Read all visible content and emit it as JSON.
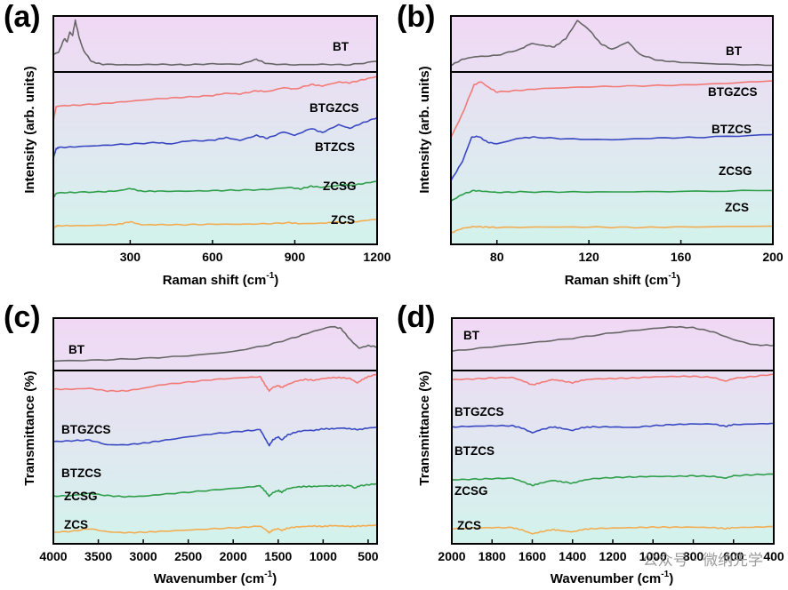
{
  "figure": {
    "watermark": "公众号 · 微纳先学",
    "colors": {
      "BT": "#666666",
      "BTGZCS": "#f27a76",
      "BTZCS": "#3a48c2",
      "ZCSG": "#2e9e4a",
      "ZCS": "#f2ad52"
    },
    "background_gradient": [
      "#f1d8f5",
      "#d3f3ec"
    ]
  },
  "chart_data": [
    {
      "panel": "(a)",
      "type": "line",
      "xlabel": "Raman shift (cm",
      "xlabel_sup": "-1",
      "xlabel_end": ")",
      "ylabel": "Intensity (arb. units)",
      "xlim": [
        20,
        1200
      ],
      "xticks": [
        300,
        600,
        900,
        1200
      ],
      "xticklabels": [
        "300",
        "600",
        "900",
        "1200"
      ],
      "series": [
        {
          "name": "BT",
          "x": [
            20,
            40,
            60,
            70,
            80,
            90,
            100,
            115,
            130,
            160,
            200,
            300,
            400,
            500,
            600,
            700,
            760,
            800,
            900,
            1000,
            1100,
            1200
          ],
          "values": [
            0.3,
            0.35,
            0.62,
            0.55,
            0.75,
            0.68,
            0.98,
            0.62,
            0.38,
            0.15,
            0.1,
            0.09,
            0.1,
            0.09,
            0.11,
            0.1,
            0.2,
            0.11,
            0.09,
            0.1,
            0.09,
            0.16
          ]
        },
        {
          "name": "BTGZCS",
          "x": [
            20,
            30,
            40,
            100,
            200,
            300,
            400,
            500,
            600,
            650,
            700,
            760,
            800,
            860,
            900,
            960,
            1000,
            1060,
            1100,
            1150,
            1200
          ],
          "values": [
            0.45,
            0.62,
            0.63,
            0.64,
            0.66,
            0.69,
            0.72,
            0.74,
            0.76,
            0.79,
            0.78,
            0.82,
            0.81,
            0.86,
            0.84,
            0.9,
            0.88,
            0.93,
            0.92,
            0.96,
            1.0
          ]
        },
        {
          "name": "BTZCS",
          "x": [
            20,
            30,
            40,
            100,
            200,
            300,
            400,
            450,
            500,
            600,
            650,
            700,
            760,
            800,
            860,
            900,
            960,
            1000,
            1060,
            1100,
            1150,
            1200
          ],
          "values": [
            0.35,
            0.48,
            0.5,
            0.51,
            0.53,
            0.55,
            0.57,
            0.55,
            0.59,
            0.6,
            0.64,
            0.6,
            0.67,
            0.63,
            0.72,
            0.67,
            0.77,
            0.71,
            0.82,
            0.77,
            0.85,
            0.92
          ]
        },
        {
          "name": "ZCSG",
          "x": [
            20,
            30,
            40,
            100,
            200,
            260,
            300,
            340,
            400,
            500,
            600,
            700,
            800,
            880,
            920,
            960,
            1000,
            1080,
            1100,
            1150,
            1200
          ],
          "values": [
            0.28,
            0.36,
            0.37,
            0.38,
            0.39,
            0.41,
            0.45,
            0.4,
            0.4,
            0.4,
            0.41,
            0.42,
            0.43,
            0.47,
            0.44,
            0.49,
            0.47,
            0.52,
            0.5,
            0.54,
            0.58
          ]
        },
        {
          "name": "ZCS",
          "x": [
            20,
            30,
            40,
            100,
            200,
            260,
            300,
            340,
            400,
            500,
            600,
            700,
            800,
            880,
            920,
            1000,
            1050,
            1100,
            1150,
            1200
          ],
          "values": [
            0.2,
            0.24,
            0.25,
            0.25,
            0.26,
            0.28,
            0.33,
            0.27,
            0.27,
            0.27,
            0.28,
            0.28,
            0.29,
            0.31,
            0.29,
            0.3,
            0.32,
            0.31,
            0.35,
            0.38
          ]
        }
      ]
    },
    {
      "panel": "(b)",
      "type": "line",
      "xlabel": "Raman shift (cm",
      "xlabel_sup": "-1",
      "xlabel_end": ")",
      "ylabel": "Intensity (arb. units)",
      "xlim": [
        60,
        200
      ],
      "xticks": [
        80,
        120,
        160,
        200
      ],
      "xticklabels": [
        "80",
        "120",
        "160",
        "200"
      ],
      "series": [
        {
          "name": "BT",
          "x": [
            60,
            65,
            70,
            80,
            90,
            95,
            100,
            105,
            110,
            115,
            120,
            125,
            130,
            137,
            142,
            150,
            160,
            180,
            200
          ],
          "values": [
            0.08,
            0.2,
            0.25,
            0.28,
            0.4,
            0.52,
            0.48,
            0.45,
            0.62,
            0.98,
            0.8,
            0.52,
            0.4,
            0.55,
            0.3,
            0.18,
            0.14,
            0.1,
            0.08
          ]
        },
        {
          "name": "BTGZCS",
          "x": [
            60,
            65,
            70,
            73,
            76,
            80,
            90,
            100,
            120,
            140,
            160,
            180,
            200
          ],
          "values": [
            0.28,
            0.55,
            0.88,
            0.92,
            0.86,
            0.8,
            0.82,
            0.84,
            0.86,
            0.87,
            0.88,
            0.9,
            0.93
          ]
        },
        {
          "name": "BTZCS",
          "x": [
            60,
            65,
            69,
            72,
            76,
            80,
            90,
            96,
            110,
            130,
            150,
            170,
            200
          ],
          "values": [
            0.22,
            0.45,
            0.74,
            0.75,
            0.68,
            0.66,
            0.73,
            0.74,
            0.72,
            0.71,
            0.73,
            0.74,
            0.77
          ]
        },
        {
          "name": "ZCSG",
          "x": [
            60,
            65,
            70,
            75,
            80,
            90,
            110,
            130,
            160,
            200
          ],
          "values": [
            0.18,
            0.32,
            0.4,
            0.38,
            0.36,
            0.37,
            0.37,
            0.37,
            0.38,
            0.4
          ]
        },
        {
          "name": "ZCS",
          "x": [
            60,
            65,
            70,
            75,
            80,
            100,
            120,
            140,
            160,
            200
          ],
          "values": [
            0.12,
            0.22,
            0.26,
            0.25,
            0.24,
            0.25,
            0.25,
            0.24,
            0.25,
            0.27
          ]
        }
      ]
    },
    {
      "panel": "(c)",
      "type": "line",
      "xlabel": "Wavenumber (cm",
      "xlabel_sup": "-1",
      "xlabel_end": ")",
      "ylabel": "Transmittance (%)",
      "xlim": [
        4000,
        400
      ],
      "xticks": [
        4000,
        3500,
        3000,
        2500,
        2000,
        1500,
        1000,
        500
      ],
      "xticklabels": [
        "4000",
        "3500",
        "3000",
        "2500",
        "2000",
        "1500",
        "1000",
        "500"
      ],
      "series": [
        {
          "name": "BT",
          "x": [
            4000,
            3500,
            3000,
            2500,
            2000,
            1600,
            1300,
            1100,
            900,
            800,
            700,
            600,
            500,
            400
          ],
          "values": [
            0.12,
            0.14,
            0.18,
            0.24,
            0.34,
            0.5,
            0.68,
            0.82,
            0.93,
            0.88,
            0.62,
            0.42,
            0.48,
            0.45
          ]
        },
        {
          "name": "BTGZCS",
          "x": [
            4000,
            3800,
            3600,
            3400,
            3200,
            3000,
            2800,
            2500,
            2200,
            1900,
            1700,
            1640,
            1600,
            1560,
            1500,
            1460,
            1400,
            1300,
            1200,
            1100,
            1000,
            900,
            800,
            700,
            620,
            560,
            500,
            400
          ],
          "values": [
            0.82,
            0.82,
            0.83,
            0.8,
            0.8,
            0.83,
            0.87,
            0.9,
            0.93,
            0.95,
            0.96,
            0.86,
            0.8,
            0.84,
            0.86,
            0.84,
            0.87,
            0.91,
            0.93,
            0.92,
            0.94,
            0.95,
            0.95,
            0.94,
            0.89,
            0.93,
            0.96,
            0.99
          ]
        },
        {
          "name": "BTZCS",
          "x": [
            4000,
            3800,
            3600,
            3400,
            3200,
            3000,
            2800,
            2500,
            2200,
            1900,
            1700,
            1640,
            1600,
            1560,
            1500,
            1460,
            1400,
            1300,
            1200,
            1100,
            1000,
            900,
            800,
            700,
            600,
            500,
            400
          ],
          "values": [
            0.7,
            0.71,
            0.72,
            0.66,
            0.66,
            0.68,
            0.71,
            0.76,
            0.8,
            0.83,
            0.85,
            0.73,
            0.65,
            0.72,
            0.76,
            0.72,
            0.78,
            0.82,
            0.84,
            0.84,
            0.86,
            0.86,
            0.87,
            0.86,
            0.85,
            0.87,
            0.88
          ]
        },
        {
          "name": "ZCSG",
          "x": [
            4000,
            3800,
            3600,
            3400,
            3200,
            3000,
            2800,
            2500,
            2200,
            1900,
            1700,
            1640,
            1600,
            1560,
            1500,
            1460,
            1400,
            1300,
            1200,
            1100,
            1000,
            900,
            800,
            700,
            650,
            600,
            500,
            400
          ],
          "values": [
            0.4,
            0.41,
            0.45,
            0.41,
            0.39,
            0.4,
            0.43,
            0.47,
            0.51,
            0.55,
            0.58,
            0.48,
            0.4,
            0.46,
            0.5,
            0.47,
            0.53,
            0.56,
            0.57,
            0.57,
            0.58,
            0.58,
            0.58,
            0.59,
            0.54,
            0.58,
            0.6,
            0.62
          ]
        },
        {
          "name": "ZCS",
          "x": [
            4000,
            3800,
            3600,
            3400,
            3200,
            3000,
            2800,
            2500,
            2200,
            1900,
            1700,
            1640,
            1600,
            1560,
            1500,
            1460,
            1400,
            1300,
            1200,
            1100,
            1000,
            900,
            800,
            700,
            600,
            500,
            400
          ],
          "values": [
            0.22,
            0.24,
            0.3,
            0.23,
            0.21,
            0.22,
            0.24,
            0.27,
            0.3,
            0.33,
            0.36,
            0.28,
            0.21,
            0.27,
            0.3,
            0.26,
            0.31,
            0.34,
            0.35,
            0.36,
            0.35,
            0.37,
            0.36,
            0.35,
            0.36,
            0.37,
            0.38
          ]
        }
      ]
    },
    {
      "panel": "(d)",
      "type": "line",
      "xlabel": "Wavenumber (cm",
      "xlabel_sup": "-1",
      "xlabel_end": ")",
      "ylabel": "Transmittance (%)",
      "xlim": [
        2000,
        400
      ],
      "xticks": [
        2000,
        1800,
        1600,
        1400,
        1200,
        1000,
        800,
        600,
        400
      ],
      "xticklabels": [
        "2000",
        "1800",
        "1600",
        "1400",
        "1200",
        "1000",
        "800",
        "600",
        "400"
      ],
      "series": [
        {
          "name": "BT",
          "x": [
            2000,
            1800,
            1600,
            1400,
            1200,
            1000,
            900,
            800,
            700,
            600,
            500,
            400
          ],
          "values": [
            0.35,
            0.45,
            0.55,
            0.65,
            0.78,
            0.88,
            0.92,
            0.9,
            0.8,
            0.62,
            0.5,
            0.48
          ]
        },
        {
          "name": "BTGZCS",
          "x": [
            2000,
            1900,
            1800,
            1700,
            1650,
            1600,
            1560,
            1500,
            1460,
            1400,
            1350,
            1300,
            1200,
            1100,
            1000,
            900,
            800,
            700,
            640,
            600,
            500,
            400
          ],
          "values": [
            0.88,
            0.89,
            0.91,
            0.92,
            0.86,
            0.78,
            0.82,
            0.88,
            0.86,
            0.82,
            0.87,
            0.89,
            0.9,
            0.91,
            0.93,
            0.94,
            0.94,
            0.92,
            0.85,
            0.9,
            0.94,
            0.98
          ]
        },
        {
          "name": "BTZCS",
          "x": [
            2000,
            1900,
            1800,
            1700,
            1650,
            1600,
            1560,
            1500,
            1460,
            1400,
            1350,
            1300,
            1200,
            1100,
            1000,
            900,
            800,
            700,
            640,
            600,
            500,
            400
          ],
          "values": [
            0.72,
            0.73,
            0.74,
            0.74,
            0.7,
            0.62,
            0.67,
            0.72,
            0.7,
            0.66,
            0.71,
            0.72,
            0.72,
            0.71,
            0.74,
            0.76,
            0.77,
            0.77,
            0.73,
            0.76,
            0.77,
            0.78
          ]
        },
        {
          "name": "ZCSG",
          "x": [
            2000,
            1900,
            1800,
            1700,
            1650,
            1600,
            1560,
            1500,
            1460,
            1400,
            1350,
            1300,
            1200,
            1100,
            1000,
            900,
            800,
            700,
            640,
            600,
            500,
            400
          ],
          "values": [
            0.5,
            0.51,
            0.52,
            0.53,
            0.47,
            0.4,
            0.44,
            0.49,
            0.47,
            0.44,
            0.49,
            0.52,
            0.54,
            0.55,
            0.56,
            0.56,
            0.57,
            0.56,
            0.53,
            0.57,
            0.59,
            0.6
          ]
        },
        {
          "name": "ZCS",
          "x": [
            2000,
            1900,
            1800,
            1700,
            1650,
            1600,
            1560,
            1500,
            1460,
            1400,
            1350,
            1300,
            1200,
            1100,
            1000,
            900,
            800,
            700,
            640,
            600,
            500,
            400
          ],
          "values": [
            0.28,
            0.29,
            0.3,
            0.3,
            0.25,
            0.17,
            0.21,
            0.26,
            0.24,
            0.21,
            0.26,
            0.28,
            0.29,
            0.3,
            0.31,
            0.31,
            0.31,
            0.3,
            0.28,
            0.3,
            0.31,
            0.32
          ]
        }
      ]
    }
  ]
}
